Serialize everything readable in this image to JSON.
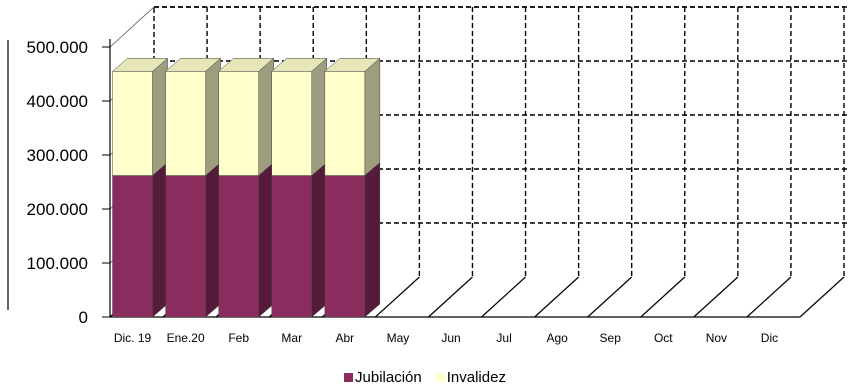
{
  "chart_data": {
    "type": "bar",
    "stacked": true,
    "three_d": true,
    "categories": [
      "Dic. 19",
      "Ene.20",
      "Feb",
      "Mar",
      "Abr",
      "May",
      "Jun",
      "Jul",
      "Ago",
      "Sep",
      "Oct",
      "Nov",
      "Dic"
    ],
    "series": [
      {
        "name": "Jubilación",
        "color": "#8B2C5E",
        "values": [
          262000,
          262000,
          262000,
          262000,
          262000,
          null,
          null,
          null,
          null,
          null,
          null,
          null,
          null
        ]
      },
      {
        "name": "Invalidez",
        "color": "#FFFFCC",
        "values": [
          193000,
          193000,
          193000,
          193000,
          193000,
          null,
          null,
          null,
          null,
          null,
          null,
          null,
          null
        ]
      }
    ],
    "yticks": [
      "0",
      "100.000",
      "200.000",
      "300.000",
      "400.000",
      "500.000"
    ],
    "ylim": [
      0,
      500000
    ],
    "grid": true,
    "legend_position": "bottom"
  }
}
